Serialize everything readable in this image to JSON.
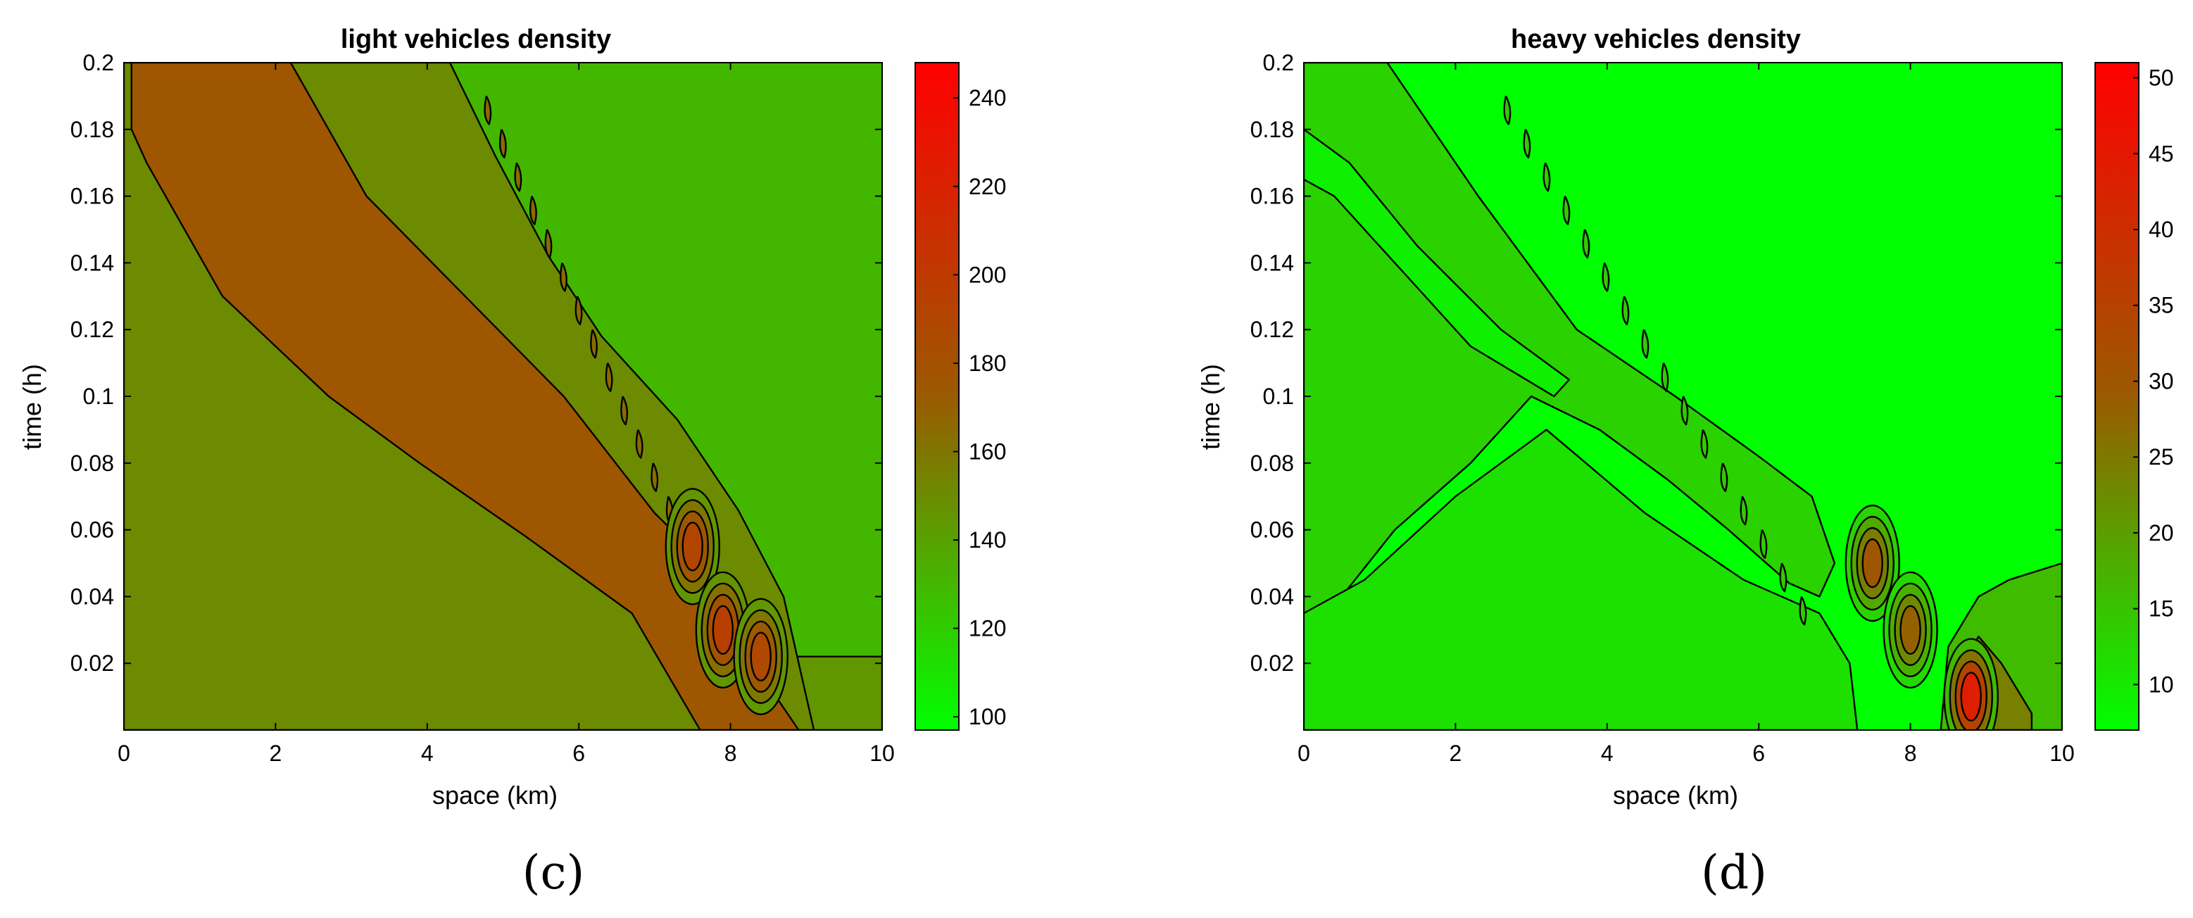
{
  "palette": {
    "low": "#00ff00",
    "mid": "#9a5a00",
    "high": "#ff0000",
    "frame": "#000000"
  },
  "chart_data": [
    {
      "type": "heatmap",
      "title": "light vehicles density",
      "panel_label": "(c)",
      "xlabel": "space (km)",
      "ylabel": "time (h)",
      "xlim": [
        0,
        10
      ],
      "ylim": [
        0,
        0.2
      ],
      "xticks": [
        0,
        2,
        4,
        6,
        8,
        10
      ],
      "xtick_labels": [
        "0",
        "2",
        "4",
        "6",
        "8",
        "10"
      ],
      "yticks": [
        0.02,
        0.04,
        0.06,
        0.08,
        0.1,
        0.12,
        0.14,
        0.16,
        0.18,
        0.2
      ],
      "ytick_labels": [
        "0.02",
        "0.04",
        "0.06",
        "0.08",
        "0.1",
        "0.12",
        "0.14",
        "0.16",
        "0.18",
        "0.2"
      ],
      "colorbar": {
        "range": [
          97,
          248
        ],
        "ticks": [
          100,
          120,
          140,
          160,
          180,
          200,
          220,
          240
        ],
        "labels": [
          "100",
          "120",
          "140",
          "160",
          "180",
          "200",
          "220",
          "240"
        ]
      },
      "background_level": 130,
      "base_band": {
        "t_max": 0.022,
        "level": 145,
        "lobes_x": [
          0.2,
          1.3,
          2.3,
          3.3,
          4.3,
          5.4,
          6.4,
          7.1
        ],
        "lobe_level": 172
      },
      "regions": [
        {
          "level": 150,
          "polygon": [
            [
              0,
              0.2
            ],
            [
              4.3,
              0.2
            ],
            [
              4.9,
              0.172
            ],
            [
              5.6,
              0.142
            ],
            [
              6.3,
              0.118
            ],
            [
              7.3,
              0.093
            ],
            [
              8.1,
              0.066
            ],
            [
              8.7,
              0.04
            ],
            [
              9.0,
              0.01
            ],
            [
              9.1,
              0.0
            ],
            [
              0,
              0.0
            ]
          ]
        },
        {
          "level": 176,
          "polygon": [
            [
              0.1,
              0.2
            ],
            [
              2.2,
              0.2
            ],
            [
              3.2,
              0.16
            ],
            [
              4.5,
              0.13
            ],
            [
              5.8,
              0.1
            ],
            [
              7.0,
              0.065
            ],
            [
              7.9,
              0.045
            ],
            [
              8.6,
              0.01
            ],
            [
              8.9,
              0.0
            ],
            [
              7.6,
              0.0
            ],
            [
              6.7,
              0.035
            ],
            [
              5.3,
              0.058
            ],
            [
              3.9,
              0.08
            ],
            [
              2.7,
              0.1
            ],
            [
              1.3,
              0.13
            ],
            [
              0.3,
              0.17
            ],
            [
              0.1,
              0.18
            ]
          ]
        }
      ],
      "peaks": [
        {
          "x": 7.5,
          "t": 0.055,
          "level": 190
        },
        {
          "x": 7.9,
          "t": 0.03,
          "level": 195
        },
        {
          "x": 8.4,
          "t": 0.022,
          "level": 188
        }
      ]
    },
    {
      "type": "heatmap",
      "title": "heavy vehicles density",
      "panel_label": "(d)",
      "xlabel": "space (km)",
      "ylabel": "time (h)",
      "xlim": [
        0,
        10
      ],
      "ylim": [
        0,
        0.2
      ],
      "xticks": [
        0,
        2,
        4,
        6,
        8,
        10
      ],
      "xtick_labels": [
        "0",
        "2",
        "4",
        "6",
        "8",
        "10"
      ],
      "yticks": [
        0.02,
        0.04,
        0.06,
        0.08,
        0.1,
        0.12,
        0.14,
        0.16,
        0.18,
        0.2
      ],
      "ytick_labels": [
        "0.02",
        "0.04",
        "0.06",
        "0.08",
        "0.1",
        "0.12",
        "0.14",
        "0.16",
        "0.18",
        "0.2"
      ],
      "colorbar": {
        "range": [
          7,
          51
        ],
        "ticks": [
          10,
          15,
          20,
          25,
          30,
          35,
          40,
          45,
          50
        ],
        "labels": [
          "10",
          "15",
          "20",
          "25",
          "30",
          "35",
          "40",
          "45",
          "50"
        ]
      },
      "background_level": 7,
      "regions": [
        {
          "level": 13,
          "polygon": [
            [
              0,
              0.2
            ],
            [
              1.1,
              0.2
            ],
            [
              2.3,
              0.16
            ],
            [
              3.6,
              0.12
            ],
            [
              4.9,
              0.1
            ],
            [
              6.0,
              0.082
            ],
            [
              6.7,
              0.07
            ],
            [
              7.0,
              0.05
            ],
            [
              6.8,
              0.04
            ],
            [
              6.4,
              0.044
            ],
            [
              5.6,
              0.06
            ],
            [
              4.8,
              0.075
            ],
            [
              3.9,
              0.09
            ],
            [
              3.0,
              0.1
            ],
            [
              2.2,
              0.08
            ],
            [
              1.2,
              0.06
            ],
            [
              0.5,
              0.04
            ],
            [
              0,
              0.035
            ]
          ]
        },
        {
          "level": 11,
          "polygon": [
            [
              0,
              0.035
            ],
            [
              0.8,
              0.045
            ],
            [
              2.0,
              0.07
            ],
            [
              3.2,
              0.09
            ],
            [
              4.5,
              0.065
            ],
            [
              5.8,
              0.045
            ],
            [
              6.8,
              0.035
            ],
            [
              7.2,
              0.02
            ],
            [
              7.3,
              0.0
            ],
            [
              0,
              0.0
            ]
          ]
        },
        {
          "level": 9,
          "polygon": [
            [
              0,
              0.18
            ],
            [
              0.6,
              0.17
            ],
            [
              1.5,
              0.145
            ],
            [
              2.6,
              0.12
            ],
            [
              3.5,
              0.105
            ],
            [
              3.3,
              0.1
            ],
            [
              2.2,
              0.115
            ],
            [
              1.2,
              0.14
            ],
            [
              0.4,
              0.16
            ],
            [
              0,
              0.165
            ]
          ]
        },
        {
          "level": 16,
          "polygon": [
            [
              8.4,
              0.0
            ],
            [
              8.5,
              0.025
            ],
            [
              8.9,
              0.04
            ],
            [
              9.3,
              0.045
            ],
            [
              10,
              0.05
            ],
            [
              10,
              0.0
            ]
          ]
        },
        {
          "level": 24,
          "polygon": [
            [
              8.6,
              0.0
            ],
            [
              8.6,
              0.018
            ],
            [
              8.9,
              0.028
            ],
            [
              9.2,
              0.02
            ],
            [
              9.6,
              0.005
            ],
            [
              9.6,
              0.0
            ]
          ]
        }
      ],
      "peaks": [
        {
          "x": 7.5,
          "t": 0.05,
          "level": 30
        },
        {
          "x": 8.0,
          "t": 0.03,
          "level": 28
        },
        {
          "x": 8.8,
          "t": 0.01,
          "level": 44
        }
      ]
    }
  ]
}
